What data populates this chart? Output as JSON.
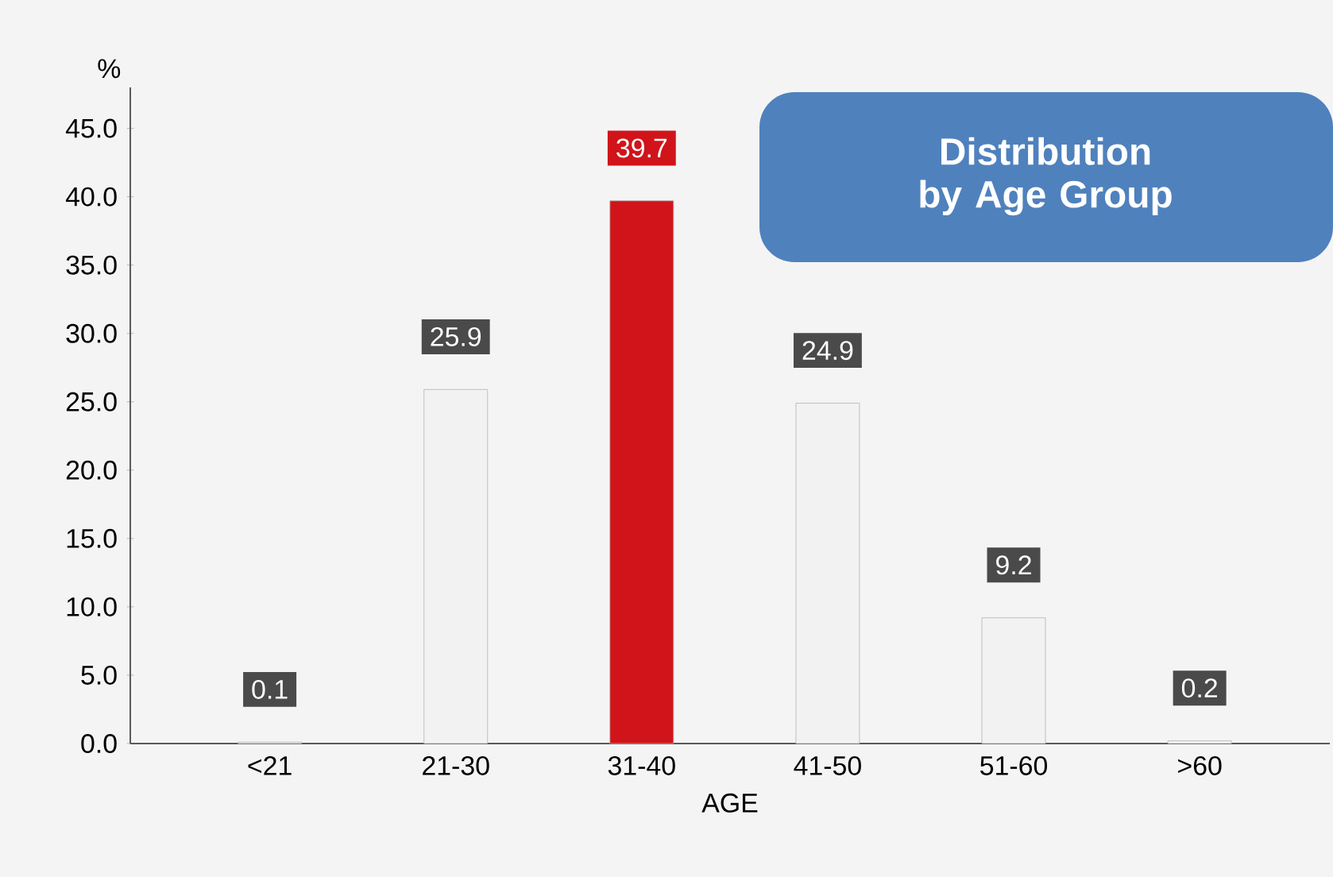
{
  "chart_data": {
    "type": "bar",
    "title": "Distribution by Age Group",
    "xlabel": "AGE",
    "ylabel": "%",
    "categories": [
      "<21",
      "21-30",
      "31-40",
      "41-50",
      "51-60",
      ">60"
    ],
    "values": [
      0.1,
      25.9,
      39.7,
      24.9,
      9.2,
      0.2
    ],
    "colors": [
      "#f2f2f2",
      "#f2f2f2",
      "#d0141a",
      "#f2f2f2",
      "#f2f2f2",
      "#f2f2f2"
    ],
    "ylim": [
      0,
      48
    ],
    "yticks": [
      {
        "value": 0,
        "label": "0.0"
      },
      {
        "value": 5,
        "label": "5.0"
      },
      {
        "value": 10,
        "label": "10.0"
      },
      {
        "value": 15,
        "label": "15.0"
      },
      {
        "value": 20,
        "label": "20.0"
      },
      {
        "value": 25,
        "label": "25.0"
      },
      {
        "value": 30,
        "label": "30.0"
      },
      {
        "value": 35,
        "label": "35.0"
      },
      {
        "value": 40,
        "label": "40.0"
      },
      {
        "value": 45,
        "label": "45.0"
      }
    ],
    "data_labels": true
  }
}
